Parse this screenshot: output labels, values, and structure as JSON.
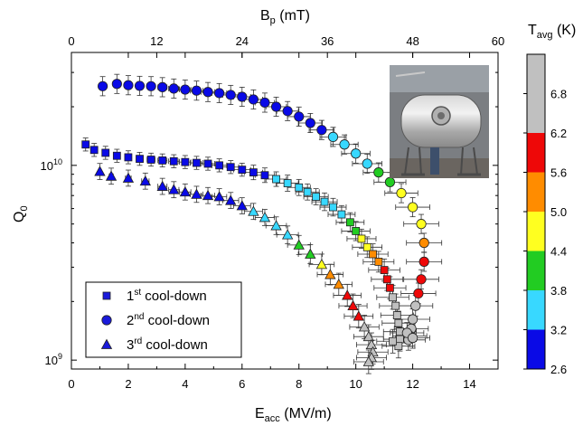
{
  "chart_data": {
    "type": "scatter",
    "x_axis": {
      "label": "E",
      "label_sub": "acc",
      "label_unit": " (MV/m)",
      "range": [
        0,
        15
      ],
      "ticks": [
        "0",
        "2",
        "4",
        "6",
        "8",
        "10",
        "12",
        "14"
      ]
    },
    "top_axis": {
      "label": "B",
      "label_sub": "p",
      "label_unit": " (mT)",
      "range": [
        0,
        60
      ],
      "ticks": [
        "0",
        "12",
        "24",
        "36",
        "48",
        "60"
      ]
    },
    "y_axis": {
      "label": "Q",
      "label_sub": "0",
      "scale": "log",
      "range": [
        900000000.0,
        38000000000.0
      ],
      "ticks": [
        {
          "value": 1000000000.0,
          "base": "10",
          "exp": "9"
        },
        {
          "value": 10000000000.0,
          "base": "10",
          "exp": "10"
        }
      ]
    },
    "colorbar": {
      "label": "T",
      "label_sub": "avg",
      "label_unit": " (K)",
      "range": [
        2.6,
        7.4
      ],
      "ticks": [
        "2.6",
        "3.2",
        "3.8",
        "4.4",
        "5.0",
        "5.6",
        "6.2",
        "6.8"
      ],
      "colors": [
        "#0a0ae6",
        "#38d8ff",
        "#22cc22",
        "#ffff20",
        "#ff8c00",
        "#ee0808",
        "#c0c0c0"
      ]
    },
    "legend": {
      "placement": "bottom-left",
      "entries": [
        {
          "marker": "square",
          "text": "1",
          "sup": "st",
          "rest": " cool-down"
        },
        {
          "marker": "circle",
          "text": "2",
          "sup": "nd",
          "rest": " cool-down"
        },
        {
          "marker": "triangle",
          "text": "3",
          "sup": "rd",
          "rest": " cool-down"
        }
      ]
    },
    "series": [
      {
        "marker": "square",
        "points": [
          [
            0.5,
            12800000000.0
          ],
          [
            0.8,
            12000000000.0
          ],
          [
            1.2,
            11600000000.0
          ],
          [
            1.6,
            11200000000.0
          ],
          [
            2.0,
            11000000000.0
          ],
          [
            2.4,
            10800000000.0
          ],
          [
            2.8,
            10700000000.0
          ],
          [
            3.2,
            10600000000.0
          ],
          [
            3.6,
            10500000000.0
          ],
          [
            4.0,
            10400000000.0
          ],
          [
            4.4,
            10300000000.0
          ],
          [
            4.8,
            10200000000.0
          ],
          [
            5.2,
            10000000000.0
          ],
          [
            5.6,
            9800000000.0
          ],
          [
            6.0,
            9500000000.0
          ],
          [
            6.4,
            9200000000.0
          ],
          [
            6.8,
            8900000000.0
          ],
          [
            7.2,
            8500000000.0
          ],
          [
            7.6,
            8100000000.0
          ],
          [
            8.0,
            7700000000.0
          ],
          [
            8.3,
            7300000000.0
          ],
          [
            8.6,
            6900000000.0
          ],
          [
            8.9,
            6500000000.0
          ],
          [
            9.2,
            6100000000.0
          ],
          [
            9.5,
            5600000000.0
          ],
          [
            9.8,
            5100000000.0
          ],
          [
            10.0,
            4600000000.0
          ],
          [
            10.2,
            4200000000.0
          ],
          [
            10.4,
            3800000000.0
          ],
          [
            10.6,
            3500000000.0
          ],
          [
            10.8,
            3200000000.0
          ],
          [
            11.0,
            2900000000.0
          ],
          [
            11.1,
            2600000000.0
          ],
          [
            11.2,
            2350000000.0
          ],
          [
            11.3,
            2100000000.0
          ],
          [
            11.4,
            1900000000.0
          ],
          [
            11.45,
            1700000000.0
          ],
          [
            11.5,
            1550000000.0
          ],
          [
            11.55,
            1400000000.0
          ],
          [
            11.55,
            1280000000.0
          ],
          [
            11.5,
            1180000000.0
          ],
          [
            11.3,
            1250000000.0
          ]
        ],
        "temps": [
          2.7,
          2.7,
          2.7,
          2.7,
          2.7,
          2.7,
          2.7,
          2.7,
          2.7,
          2.7,
          2.7,
          2.7,
          2.7,
          2.8,
          2.9,
          3.0,
          3.1,
          3.3,
          3.4,
          3.5,
          3.6,
          3.7,
          3.7,
          3.8,
          3.8,
          3.9,
          4.2,
          4.6,
          5.0,
          5.4,
          5.6,
          5.8,
          6.0,
          6.2,
          6.3,
          6.4,
          6.5,
          6.6,
          6.7,
          6.8,
          7.0,
          7.1
        ],
        "errors": [
          0.08,
          0.08,
          0.08,
          0.08,
          0.08,
          0.08,
          0.08,
          0.08,
          0.08,
          0.08,
          0.08,
          0.08,
          0.08,
          0.08,
          0.08,
          0.09,
          0.09,
          0.09,
          0.1,
          0.1,
          0.1,
          0.1,
          0.11,
          0.11,
          0.11,
          0.12,
          0.12,
          0.12,
          0.13,
          0.13,
          0.13,
          0.14,
          0.14,
          0.14,
          0.15,
          0.15,
          0.15,
          0.15,
          0.15,
          0.15,
          0.15,
          0.15
        ]
      },
      {
        "marker": "circle",
        "points": [
          [
            1.1,
            25500000000.0
          ],
          [
            1.6,
            26200000000.0
          ],
          [
            2.0,
            25800000000.0
          ],
          [
            2.4,
            25600000000.0
          ],
          [
            2.8,
            25500000000.0
          ],
          [
            3.2,
            25200000000.0
          ],
          [
            3.6,
            24800000000.0
          ],
          [
            4.0,
            24500000000.0
          ],
          [
            4.4,
            24200000000.0
          ],
          [
            4.8,
            23800000000.0
          ],
          [
            5.2,
            23500000000.0
          ],
          [
            5.6,
            23000000000.0
          ],
          [
            6.0,
            22500000000.0
          ],
          [
            6.4,
            21800000000.0
          ],
          [
            6.8,
            21000000000.0
          ],
          [
            7.2,
            20000000000.0
          ],
          [
            7.6,
            19000000000.0
          ],
          [
            8.0,
            17800000000.0
          ],
          [
            8.4,
            16500000000.0
          ],
          [
            8.8,
            15200000000.0
          ],
          [
            9.2,
            14000000000.0
          ],
          [
            9.6,
            12800000000.0
          ],
          [
            10.0,
            11500000000.0
          ],
          [
            10.4,
            10200000000.0
          ],
          [
            10.8,
            9200000000.0
          ],
          [
            11.2,
            8200000000.0
          ],
          [
            11.6,
            7200000000.0
          ],
          [
            12.0,
            6100000000.0
          ],
          [
            12.3,
            5000000000.0
          ],
          [
            12.4,
            4000000000.0
          ],
          [
            12.4,
            3200000000.0
          ],
          [
            12.3,
            2600000000.0
          ],
          [
            12.2,
            2200000000.0
          ],
          [
            12.1,
            1900000000.0
          ],
          [
            12.0,
            1620000000.0
          ],
          [
            11.95,
            1450000000.0
          ],
          [
            11.9,
            1330000000.0
          ],
          [
            11.85,
            1270000000.0
          ],
          [
            11.8,
            1380000000.0
          ],
          [
            12.0,
            1300000000.0
          ]
        ],
        "temps": [
          2.7,
          2.7,
          2.7,
          2.7,
          2.7,
          2.7,
          2.7,
          2.7,
          2.7,
          2.7,
          2.7,
          2.7,
          2.7,
          2.7,
          2.7,
          2.7,
          2.8,
          2.9,
          3.0,
          3.1,
          3.3,
          3.4,
          3.5,
          3.7,
          3.9,
          4.2,
          4.5,
          4.8,
          5.0,
          5.6,
          5.9,
          6.0,
          6.2,
          6.4,
          6.5,
          6.6,
          6.7,
          6.8,
          7.0,
          7.1
        ],
        "errors": [
          0.12,
          0.12,
          0.12,
          0.12,
          0.12,
          0.12,
          0.12,
          0.12,
          0.12,
          0.12,
          0.12,
          0.12,
          0.12,
          0.12,
          0.12,
          0.12,
          0.12,
          0.12,
          0.12,
          0.12,
          0.12,
          0.12,
          0.12,
          0.12,
          0.12,
          0.12,
          0.12,
          0.12,
          0.12,
          0.12,
          0.12,
          0.12,
          0.13,
          0.13,
          0.13,
          0.13,
          0.13,
          0.13,
          0.13,
          0.13
        ]
      },
      {
        "marker": "triangle",
        "points": [
          [
            1.0,
            9300000000.0
          ],
          [
            1.4,
            8800000000.0
          ],
          [
            2.0,
            8600000000.0
          ],
          [
            2.6,
            8300000000.0
          ],
          [
            3.2,
            7800000000.0
          ],
          [
            3.6,
            7500000000.0
          ],
          [
            4.0,
            7300000000.0
          ],
          [
            4.4,
            7100000000.0
          ],
          [
            4.8,
            7000000000.0
          ],
          [
            5.2,
            6900000000.0
          ],
          [
            5.6,
            6600000000.0
          ],
          [
            6.0,
            6200000000.0
          ],
          [
            6.4,
            5800000000.0
          ],
          [
            6.8,
            5400000000.0
          ],
          [
            7.2,
            4900000000.0
          ],
          [
            7.6,
            4400000000.0
          ],
          [
            8.0,
            3900000000.0
          ],
          [
            8.4,
            3500000000.0
          ],
          [
            8.8,
            3100000000.0
          ],
          [
            9.1,
            2750000000.0
          ],
          [
            9.4,
            2450000000.0
          ],
          [
            9.7,
            2150000000.0
          ],
          [
            9.9,
            1900000000.0
          ],
          [
            10.1,
            1680000000.0
          ],
          [
            10.3,
            1480000000.0
          ],
          [
            10.45,
            1320000000.0
          ],
          [
            10.55,
            1200000000.0
          ],
          [
            10.6,
            1100000000.0
          ],
          [
            10.55,
            1030000000.0
          ],
          [
            10.45,
            980000000.0
          ]
        ],
        "temps": [
          2.7,
          2.7,
          2.7,
          2.7,
          2.7,
          2.7,
          2.7,
          2.7,
          2.7,
          2.7,
          2.8,
          3.0,
          3.2,
          3.4,
          3.6,
          3.8,
          4.0,
          4.3,
          4.7,
          5.1,
          5.5,
          5.8,
          6.0,
          6.2,
          6.4,
          6.6,
          6.7,
          6.9,
          7.0,
          7.1
        ],
        "errors": [
          0.1,
          0.1,
          0.1,
          0.1,
          0.1,
          0.1,
          0.1,
          0.1,
          0.1,
          0.1,
          0.1,
          0.1,
          0.1,
          0.1,
          0.11,
          0.11,
          0.12,
          0.12,
          0.13,
          0.13,
          0.14,
          0.14,
          0.15,
          0.15,
          0.15,
          0.15,
          0.15,
          0.15,
          0.15,
          0.15
        ]
      }
    ],
    "inset_photo": "cryostat-photo"
  }
}
